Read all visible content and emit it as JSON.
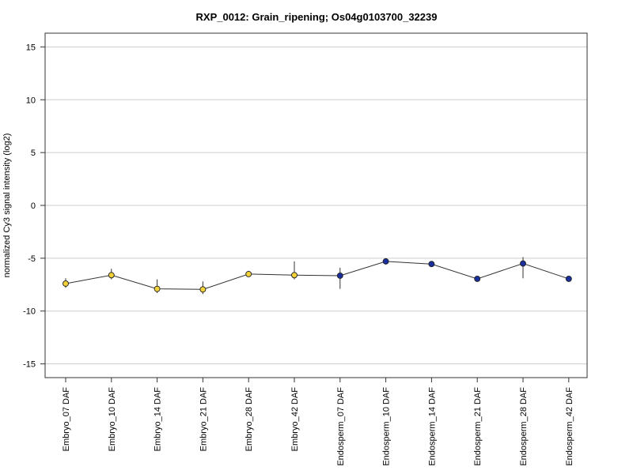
{
  "chart_data": {
    "type": "line",
    "title": "RXP_0012: Grain_ripening; Os04g0103700_32239",
    "xlabel": "",
    "ylabel": "normalized Cy3 signal intensity (log2)",
    "ylim": [
      -16.3,
      16.3
    ],
    "yticks": [
      -15,
      -10,
      -5,
      0,
      5,
      10,
      15
    ],
    "grid": true,
    "categories": [
      "Embryo_07 DAF",
      "Embryo_10 DAF",
      "Embryo_14 DAF",
      "Embryo_21 DAF",
      "Embryo_28 DAF",
      "Embryo_42 DAF",
      "Endosperm_07 DAF",
      "Endosperm_10 DAF",
      "Endosperm_14 DAF",
      "Endosperm_21 DAF",
      "Endosperm_28 DAF",
      "Endosperm_42 DAF"
    ],
    "values": [
      -7.4,
      -6.6,
      -7.9,
      -7.95,
      -6.5,
      -6.6,
      -6.65,
      -5.3,
      -5.55,
      -6.95,
      -5.5,
      -6.95
    ],
    "error_low": [
      -7.8,
      -7.0,
      -8.3,
      -8.4,
      -6.7,
      -7.0,
      -7.9,
      -5.4,
      -5.65,
      -7.05,
      -6.9,
      -7.05
    ],
    "error_high": [
      -6.9,
      -6.0,
      -7.0,
      -7.2,
      -6.2,
      -5.3,
      -5.9,
      -5.2,
      -5.45,
      -6.85,
      -4.9,
      -6.85
    ],
    "point_colors": [
      "#f2d13a",
      "#f2d13a",
      "#f2d13a",
      "#f2d13a",
      "#f2d13a",
      "#f2d13a",
      "#1a2f9e",
      "#1a2f9e",
      "#1a2f9e",
      "#1a2f9e",
      "#1a2f9e",
      "#1a2f9e"
    ]
  }
}
